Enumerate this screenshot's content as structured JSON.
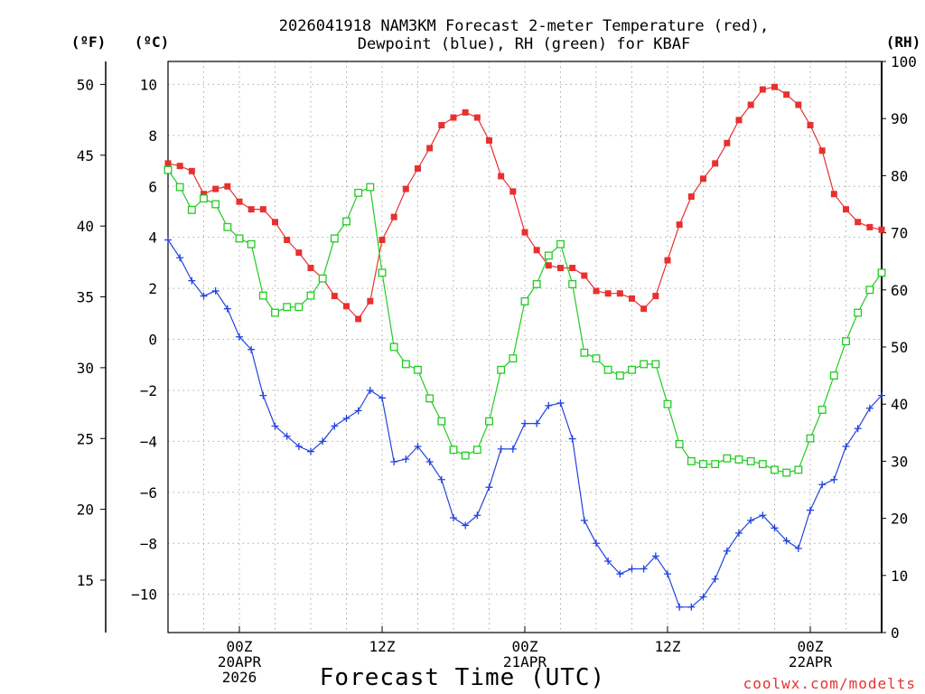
{
  "chart_data": {
    "type": "line",
    "title_line1": "2026041918 NAM3KM Forecast 2-meter Temperature (red),",
    "title_line2": "Dewpoint (blue), RH (green) for KBAF",
    "unit_f": "(ºF)",
    "unit_c": "(ºC)",
    "unit_rh": "(RH)",
    "xlabel": "Forecast Time (UTC)",
    "credit": "coolwx.com/modelts",
    "credit_color": "#e83030",
    "x_start_hour": 18,
    "x_end_hour": 78,
    "c_range": [
      -11.5,
      10.9
    ],
    "rh_range": [
      0,
      100
    ],
    "c_ticks": [
      10,
      8,
      6,
      4,
      2,
      0,
      -2,
      -4,
      -6,
      -8,
      -10
    ],
    "c_tick_labels": [
      "10",
      "8",
      "6",
      "4",
      "2",
      "0",
      "−2",
      "−4",
      "−6",
      "−8",
      "−10"
    ],
    "f_ticks": [
      50,
      45,
      40,
      35,
      30,
      25,
      20,
      15
    ],
    "f_tick_labels": [
      "50",
      "45",
      "40",
      "35",
      "30",
      "25",
      "20",
      "15"
    ],
    "rh_ticks": [
      100,
      90,
      80,
      70,
      60,
      50,
      40,
      30,
      20,
      10,
      0
    ],
    "rh_tick_labels": [
      "100",
      "90",
      "80",
      "70",
      "60",
      "50",
      "40",
      "30",
      "20",
      "10",
      "0"
    ],
    "x_ticks": [
      {
        "hour": 24,
        "lines": [
          "00Z",
          "20APR",
          "2026"
        ]
      },
      {
        "hour": 36,
        "lines": [
          "12Z"
        ]
      },
      {
        "hour": 48,
        "lines": [
          "00Z",
          "21APR"
        ]
      },
      {
        "hour": 60,
        "lines": [
          "12Z"
        ]
      },
      {
        "hour": 72,
        "lines": [
          "00Z",
          "22APR"
        ]
      }
    ],
    "series": [
      {
        "name": "Temperature",
        "unit": "C",
        "color": "#e83030",
        "marker": "filled-square",
        "values": [
          6.9,
          6.8,
          6.6,
          5.7,
          5.9,
          6.0,
          5.4,
          5.1,
          5.1,
          4.6,
          3.9,
          3.4,
          2.8,
          2.4,
          1.7,
          1.3,
          0.8,
          1.5,
          3.9,
          4.8,
          5.9,
          6.7,
          7.5,
          8.4,
          8.7,
          8.9,
          8.7,
          7.8,
          6.4,
          5.8,
          4.2,
          3.5,
          2.9,
          2.8,
          2.8,
          2.5,
          1.9,
          1.8,
          1.8,
          1.6,
          1.2,
          1.7,
          3.1,
          4.5,
          5.6,
          6.3,
          6.9,
          7.7,
          8.6,
          9.2,
          9.8,
          9.9,
          9.6,
          9.2,
          8.4,
          7.4,
          5.7,
          5.1,
          4.6,
          4.4,
          4.3
        ]
      },
      {
        "name": "Dewpoint",
        "unit": "C",
        "color": "#2244dd",
        "marker": "plus",
        "values": [
          3.9,
          3.2,
          2.3,
          1.7,
          1.9,
          1.2,
          0.1,
          -0.4,
          -2.2,
          -3.4,
          -3.8,
          -4.2,
          -4.4,
          -4.0,
          -3.4,
          -3.1,
          -2.8,
          -2.0,
          -2.3,
          -4.8,
          -4.7,
          -4.2,
          -4.8,
          -5.5,
          -7.0,
          -7.3,
          -6.9,
          -5.8,
          -4.3,
          -4.3,
          -3.3,
          -3.3,
          -2.6,
          -2.5,
          -3.9,
          -7.1,
          -8.0,
          -8.7,
          -9.2,
          -9.0,
          -9.0,
          -8.5,
          -9.2,
          -10.5,
          -10.5,
          -10.1,
          -9.4,
          -8.3,
          -7.6,
          -7.1,
          -6.9,
          -7.4,
          -7.9,
          -8.2,
          -6.7,
          -5.7,
          -5.5,
          -4.2,
          -3.5,
          -2.7,
          -2.2
        ]
      },
      {
        "name": "RH",
        "unit": "%",
        "color": "#22cc22",
        "marker": "open-square",
        "values": [
          81,
          78,
          74,
          76,
          75,
          71,
          69,
          68,
          59,
          56,
          57,
          57,
          59,
          62,
          69,
          72,
          77,
          78,
          63,
          50,
          47,
          46,
          41,
          37,
          32,
          31,
          32,
          37,
          46,
          48,
          58,
          61,
          66,
          68,
          61,
          49,
          48,
          46,
          45,
          46,
          47,
          47,
          40,
          33,
          30,
          29.5,
          29.5,
          30.5,
          30.3,
          30,
          29.5,
          28.5,
          28,
          28.5,
          34,
          39,
          45,
          51,
          56,
          60,
          63
        ]
      }
    ]
  }
}
